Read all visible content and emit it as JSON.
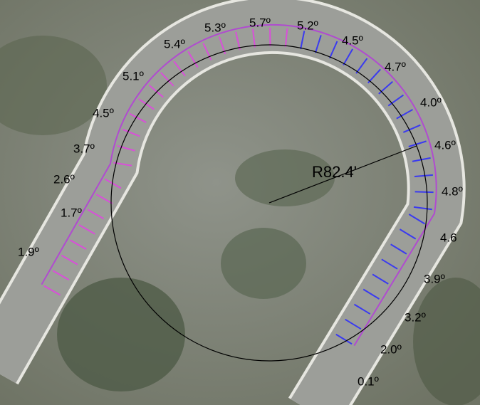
{
  "annotations": {
    "radius": "R82.4'",
    "slope_labels": [
      "1.9º",
      "1.7º",
      "2.6º",
      "3.7º",
      "4.5º",
      "5.1º",
      "5.4º",
      "5.3º",
      "5.7º",
      "5.2º",
      "4.5º",
      "4.7º",
      "4.0º",
      "4.6º",
      "4.8º",
      "4.6",
      "3.9º",
      "3.2º",
      "2.0º",
      "0.1º"
    ]
  }
}
